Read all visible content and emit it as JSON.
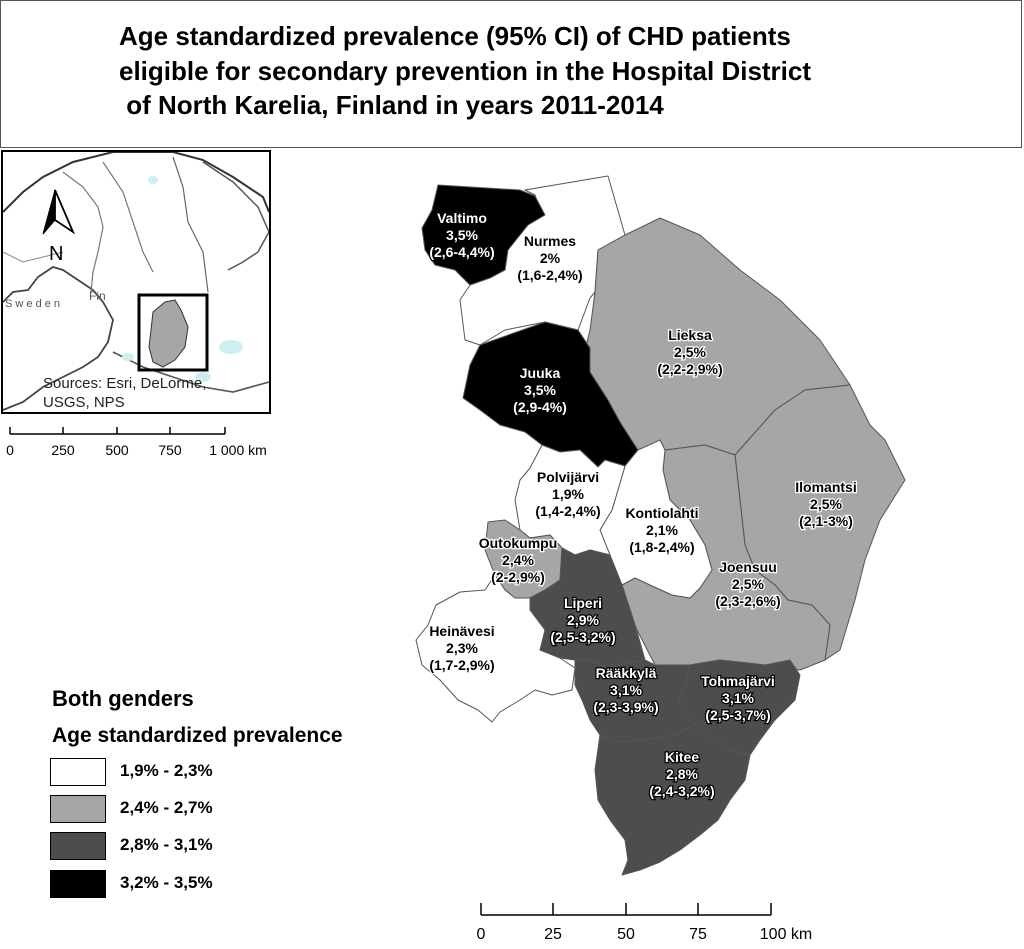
{
  "title": {
    "lines": [
      "Age standardized prevalence (95% CI) of CHD patients",
      "eligible for secondary prevention in the Hospital District",
      " of North Karelia, Finland in years 2011-2014"
    ]
  },
  "inset_map": {
    "north_label": "N",
    "country_label": "S w e d e n",
    "region_label": "Fin",
    "credit_lines": [
      "Sources: Esri, DeLorme,",
      "USGS, NPS"
    ],
    "highlight_color": "#a6a6a6"
  },
  "inset_scale": {
    "ticks": [
      "0",
      "250",
      "500",
      "750",
      "1 000 km"
    ]
  },
  "main_scale": {
    "ticks": [
      "0",
      "25",
      "50",
      "75",
      "100 km"
    ]
  },
  "legend": {
    "heading": "Both genders",
    "subheading": "Age standardized prevalence",
    "classes": [
      {
        "label": "1,9% - 2,3%",
        "color": "#ffffff"
      },
      {
        "label": "2,4% - 2,7%",
        "color": "#a6a6a6"
      },
      {
        "label": "2,8% - 3,1%",
        "color": "#4d4d4d"
      },
      {
        "label": "3,2% - 3,5%",
        "color": "#000000"
      }
    ]
  },
  "municipalities": [
    {
      "name": "Valtimo",
      "value": "3,5%",
      "ci": "(2,6-4,4%)",
      "class": 3
    },
    {
      "name": "Nurmes",
      "value": "2%",
      "ci": "(1,6-2,4%)",
      "class": 0
    },
    {
      "name": "Lieksa",
      "value": "2,5%",
      "ci": "(2,2-2,9%)",
      "class": 1
    },
    {
      "name": "Juuka",
      "value": "3,5%",
      "ci": "(2,9-4%)",
      "class": 3
    },
    {
      "name": "Polvijärvi",
      "value": "1,9%",
      "ci": "(1,4-2,4%)",
      "class": 0
    },
    {
      "name": "Kontiolahti",
      "value": "2,1%",
      "ci": "(1,8-2,4%)",
      "class": 0
    },
    {
      "name": "Ilomantsi",
      "value": "2,5%",
      "ci": "(2,1-3%)",
      "class": 1
    },
    {
      "name": "Outokumpu",
      "value": "2,4%",
      "ci": "(2-2,9%)",
      "class": 1
    },
    {
      "name": "Joensuu",
      "value": "2,5%",
      "ci": "(2,3-2,6%)",
      "class": 1
    },
    {
      "name": "Liperi",
      "value": "2,9%",
      "ci": "(2,5-3,2%)",
      "class": 2
    },
    {
      "name": "Heinävesi",
      "value": "2,3%",
      "ci": "(1,7-2,9%)",
      "class": 0
    },
    {
      "name": "Rääkkylä",
      "value": "3,1%",
      "ci": "(2,3-3,9%)",
      "class": 2
    },
    {
      "name": "Tohmajärvi",
      "value": "3,1%",
      "ci": "(2,5-3,7%)",
      "class": 2
    },
    {
      "name": "Kitee",
      "value": "2,8%",
      "ci": "(2,4-3,2%)",
      "class": 2
    }
  ]
}
